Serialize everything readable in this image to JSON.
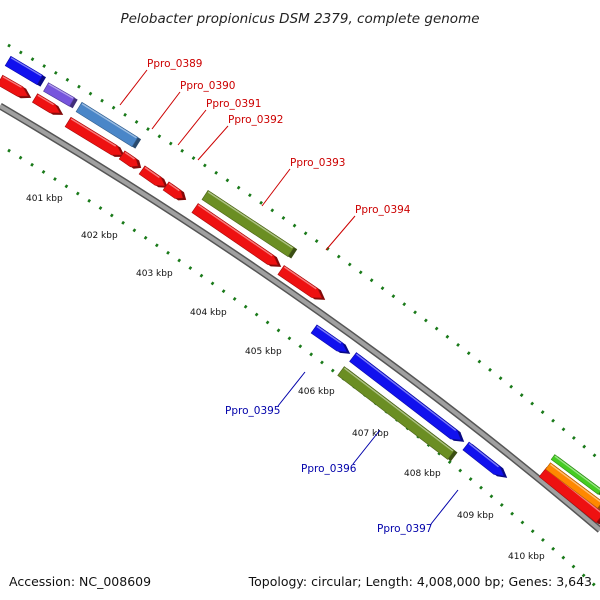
{
  "title": "Pelobacter propionicus DSM 2379, complete genome",
  "footer": {
    "accession": "Accession: NC_008609",
    "summary": "Topology: circular; Length: 4,008,000 bp; Genes: 3,643"
  },
  "colors": {
    "red_strand": "#ee1111",
    "blue_strand": "#1111ee",
    "blue_light": "#4a86c8",
    "purple": "#7755dd",
    "olive": "#6b8e23",
    "green": "#44cc22",
    "orange": "#ff8800",
    "backbone": "#8a8a8a",
    "tick": "#1a7a1a",
    "label_red": "#cc0000",
    "label_blue": "#0000aa"
  },
  "ticks": [
    {
      "label": "401 kbp"
    },
    {
      "label": "402 kbp"
    },
    {
      "label": "403 kbp"
    },
    {
      "label": "404 kbp"
    },
    {
      "label": "405 kbp"
    },
    {
      "label": "406 kbp"
    },
    {
      "label": "407 kbp"
    },
    {
      "label": "408 kbp"
    },
    {
      "label": "409 kbp"
    },
    {
      "label": "410 kbp"
    }
  ],
  "gene_labels": [
    {
      "id": "Ppro_0389",
      "strand": "plus"
    },
    {
      "id": "Ppro_0390",
      "strand": "plus"
    },
    {
      "id": "Ppro_0391",
      "strand": "plus"
    },
    {
      "id": "Ppro_0392",
      "strand": "plus"
    },
    {
      "id": "Ppro_0393",
      "strand": "plus"
    },
    {
      "id": "Ppro_0394",
      "strand": "plus"
    },
    {
      "id": "Ppro_0395",
      "strand": "minus"
    },
    {
      "id": "Ppro_0396",
      "strand": "minus"
    },
    {
      "id": "Ppro_0397",
      "strand": "minus"
    }
  ]
}
